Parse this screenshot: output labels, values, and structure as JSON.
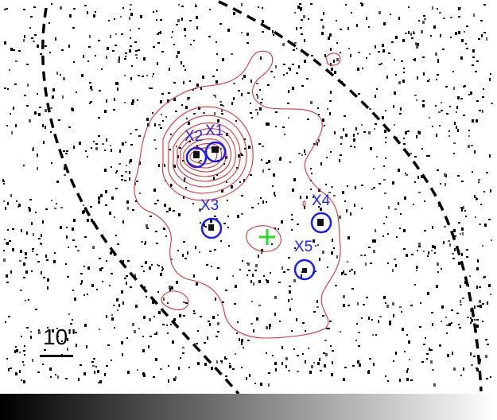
{
  "image": {
    "scale_bar_label": "10\"",
    "sources": [
      {
        "id": "x1",
        "label": "X1"
      },
      {
        "id": "x2",
        "label": "X2"
      },
      {
        "id": "x3",
        "label": "X3"
      },
      {
        "id": "x4",
        "label": "X4"
      },
      {
        "id": "x5",
        "label": "X5"
      }
    ],
    "colors": {
      "contour": "#e03030",
      "source_circle": "#1a1aff",
      "source_label": "#2222ff",
      "center_marker": "#22dd22",
      "ellipse": "#000000",
      "background": "#ffffff"
    },
    "colorbar": "black-to-white gradient"
  }
}
